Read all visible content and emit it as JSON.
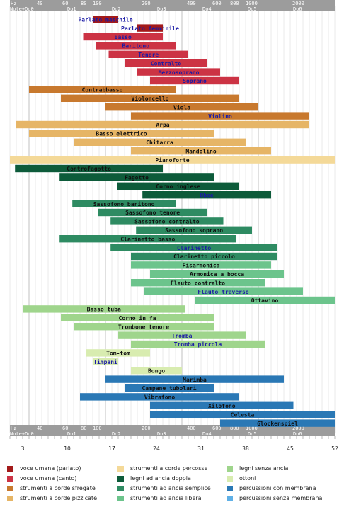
{
  "chart_data": {
    "type": "bar",
    "orientation": "horizontal",
    "x_scale": "log",
    "x_key_range": [
      1,
      52
    ],
    "hz_axis": {
      "label": "Hz",
      "ticks": [
        {
          "label": "40",
          "key": 6.5
        },
        {
          "label": "60",
          "key": 10.0
        },
        {
          "label": "80",
          "key": 13.0
        },
        {
          "label": "100",
          "key": 15.0
        },
        {
          "label": "200",
          "key": 27.0
        },
        {
          "label": "400",
          "key": 39.0
        },
        {
          "label": "600",
          "key": 46.0
        },
        {
          "label": "800",
          "key": 51.0
        },
        {
          "label": "1000",
          "key": 55.0
        }
      ]
    },
    "hz_axis_top_ticks": [
      {
        "label": "Hz",
        "x": 0
      },
      {
        "label": "40",
        "x": 0
      },
      {
        "label": "60",
        "x": 0
      },
      {
        "label": "80",
        "x": 0
      },
      {
        "label": "100",
        "x": 0
      },
      {
        "label": "200",
        "x": 0
      },
      {
        "label": "400",
        "x": 0
      },
      {
        "label": "600",
        "x": 0
      },
      {
        "label": "800",
        "x": 0
      },
      {
        "label": "1000",
        "x": 0
      },
      {
        "label": "2000",
        "x": 0
      }
    ],
    "note_axis": {
      "label": "Note+Do0",
      "ticks": [
        "Do1",
        "Do2",
        "Do3",
        "Do4",
        "Do5",
        "Do6"
      ]
    },
    "key_axis_ticks": [
      3,
      10,
      17,
      24,
      31,
      38,
      45,
      52
    ],
    "categories": [
      "Parlato maschile",
      "Parlato femminile",
      "Basso",
      "Baritono",
      "Tenore",
      "Contralto",
      "Mezzosoprano",
      "Soprano",
      "Contrabbasso",
      "Violoncello",
      "Viola",
      "Violino",
      "Arpa",
      "Basso elettrico",
      "Chitarra",
      "Mandolino",
      "Pianoforte",
      "Controfagotto",
      "Fagotto",
      "Corno inglese",
      "Oboe",
      "Sassofono baritono",
      "Sassofono tenore",
      "Sassofono contralto",
      "Sassofono soprano",
      "Clarinetto basso",
      "Clarinetto",
      "Clarinetto piccolo",
      "Fisarmonica",
      "Armonica a bocca",
      "Flauto contralto",
      "Flauto traverso",
      "Ottavino",
      "Basso tuba",
      "Corno in fa",
      "Trombone tenore",
      "Tromba",
      "Tromba piccola",
      "Tom-tom",
      "Timpani",
      "Bongo",
      "Marimba",
      "Campane tubolari",
      "Vibrafono",
      "Xilofono",
      "Celesta",
      "Glockenspiel"
    ],
    "bars": [
      {
        "label": "Parlato maschile",
        "start": 14.0,
        "end": 18.0,
        "group": 0
      },
      {
        "label": "Parlato femminile",
        "start": 21.0,
        "end": 25.0,
        "group": 0
      },
      {
        "label": "Basso",
        "start": 12.5,
        "end": 25.0,
        "group": 1
      },
      {
        "label": "Baritono",
        "start": 14.5,
        "end": 27.0,
        "group": 1
      },
      {
        "label": "Tenore",
        "start": 16.5,
        "end": 29.0,
        "group": 1
      },
      {
        "label": "Contralto",
        "start": 19.0,
        "end": 32.0,
        "group": 1
      },
      {
        "label": "Mezzosoprano",
        "start": 21.0,
        "end": 34.0,
        "group": 1
      },
      {
        "label": "Soprano",
        "start": 23.0,
        "end": 37.0,
        "group": 1
      },
      {
        "label": "Contrabbasso",
        "start": 4.0,
        "end": 27.0,
        "group": 2
      },
      {
        "label": "Violoncello",
        "start": 9.0,
        "end": 37.0,
        "group": 2
      },
      {
        "label": "Viola",
        "start": 16.0,
        "end": 40.0,
        "group": 2
      },
      {
        "label": "Violino",
        "start": 20.0,
        "end": 48.0,
        "group": 2
      },
      {
        "label": "Arpa",
        "start": 2.0,
        "end": 48.0,
        "group": 3
      },
      {
        "label": "Basso elettrico",
        "start": 4.0,
        "end": 33.0,
        "group": 3
      },
      {
        "label": "Chitarra",
        "start": 11.0,
        "end": 38.0,
        "group": 3
      },
      {
        "label": "Mandolino",
        "start": 20.0,
        "end": 42.0,
        "group": 3
      },
      {
        "label": "Pianoforte",
        "start": 1.0,
        "end": 52.0,
        "group": 4
      },
      {
        "label": "Controfagotto",
        "start": 1.8,
        "end": 25.0,
        "group": 5
      },
      {
        "label": "Fagotto",
        "start": 8.8,
        "end": 33.0,
        "group": 5
      },
      {
        "label": "Corno inglese",
        "start": 17.8,
        "end": 37.0,
        "group": 5
      },
      {
        "label": "Oboe",
        "start": 21.8,
        "end": 42.0,
        "group": 5
      },
      {
        "label": "Sassofono baritono",
        "start": 10.8,
        "end": 27.0,
        "group": 6
      },
      {
        "label": "Sassofono tenore",
        "start": 14.8,
        "end": 32.0,
        "group": 6
      },
      {
        "label": "Sassofono contralto",
        "start": 16.8,
        "end": 34.5,
        "group": 6
      },
      {
        "label": "Sassofono soprano",
        "start": 20.8,
        "end": 39.0,
        "group": 6
      },
      {
        "label": "Clarinetto basso",
        "start": 8.8,
        "end": 36.5,
        "group": 6
      },
      {
        "label": "Clarinetto",
        "start": 16.8,
        "end": 43.0,
        "group": 6
      },
      {
        "label": "Clarinetto piccolo",
        "start": 20.0,
        "end": 43.0,
        "group": 6
      },
      {
        "label": "Fisarmonica",
        "start": 20.0,
        "end": 42.0,
        "group": 7
      },
      {
        "label": "Armonica a bocca",
        "start": 23.0,
        "end": 44.0,
        "group": 7
      },
      {
        "label": "Flauto contralto",
        "start": 20.0,
        "end": 41.0,
        "group": 7
      },
      {
        "label": "Flauto traverso",
        "start": 22.0,
        "end": 47.0,
        "group": 7
      },
      {
        "label": "Ottavino",
        "start": 30.0,
        "end": 52.0,
        "group": 7
      },
      {
        "label": "Basso tuba",
        "start": 3.0,
        "end": 28.5,
        "group": 8
      },
      {
        "label": "Corno in fa",
        "start": 9.0,
        "end": 33.0,
        "group": 8
      },
      {
        "label": "Trombone tenore",
        "start": 11.0,
        "end": 33.0,
        "group": 8
      },
      {
        "label": "Tromba",
        "start": 18.0,
        "end": 38.0,
        "group": 8
      },
      {
        "label": "Tromba piccola",
        "start": 20.0,
        "end": 41.0,
        "group": 8
      },
      {
        "label": "Tom-tom",
        "start": 13.0,
        "end": 23.0,
        "group": 9
      },
      {
        "label": "Timpani",
        "start": 14.0,
        "end": 18.0,
        "group": 9
      },
      {
        "label": "Bongo",
        "start": 20.0,
        "end": 28.0,
        "group": 9
      },
      {
        "label": "Marimba",
        "start": 16.0,
        "end": 44.0,
        "group": 10
      },
      {
        "label": "Campane tubolari",
        "start": 19.0,
        "end": 33.0,
        "group": 10
      },
      {
        "label": "Vibrafono",
        "start": 12.0,
        "end": 37.0,
        "group": 10
      },
      {
        "label": "Xilofono",
        "start": 23.0,
        "end": 45.5,
        "group": 10
      },
      {
        "label": "Celesta",
        "start": 23.0,
        "end": 52.0,
        "group": 10
      },
      {
        "label": "Glockenspiel",
        "start": 34.0,
        "end": 52.0,
        "group": 10
      }
    ],
    "legend": [
      {
        "label": "voce umana (parlato)",
        "color": "#a31a1a"
      },
      {
        "label": "voce umana (canto)",
        "color": "#cc3344"
      },
      {
        "label": "strumenti a corde sfregate",
        "color": "#c8792e"
      },
      {
        "label": "strumenti a corde pizzicate",
        "color": "#e6b566"
      },
      {
        "label": "strumenti a corde percosse",
        "color": "#f4d998"
      },
      {
        "label": "legni ad ancia doppia",
        "color": "#0d5b3a"
      },
      {
        "label": "strumenti ad ancia semplice",
        "color": "#2e8b62"
      },
      {
        "label": "strumenti ad ancia libera",
        "color": "#6cc48c"
      },
      {
        "label": "legni senza ancia",
        "color": "#9fd58c"
      },
      {
        "label": "ottoni",
        "color": "#d8ecb0"
      },
      {
        "label": "percussioni con membrana",
        "color": "#2a78b5"
      },
      {
        "label": "percussioni senza membrana",
        "color": "#5fb0e6"
      }
    ],
    "grid": true
  }
}
